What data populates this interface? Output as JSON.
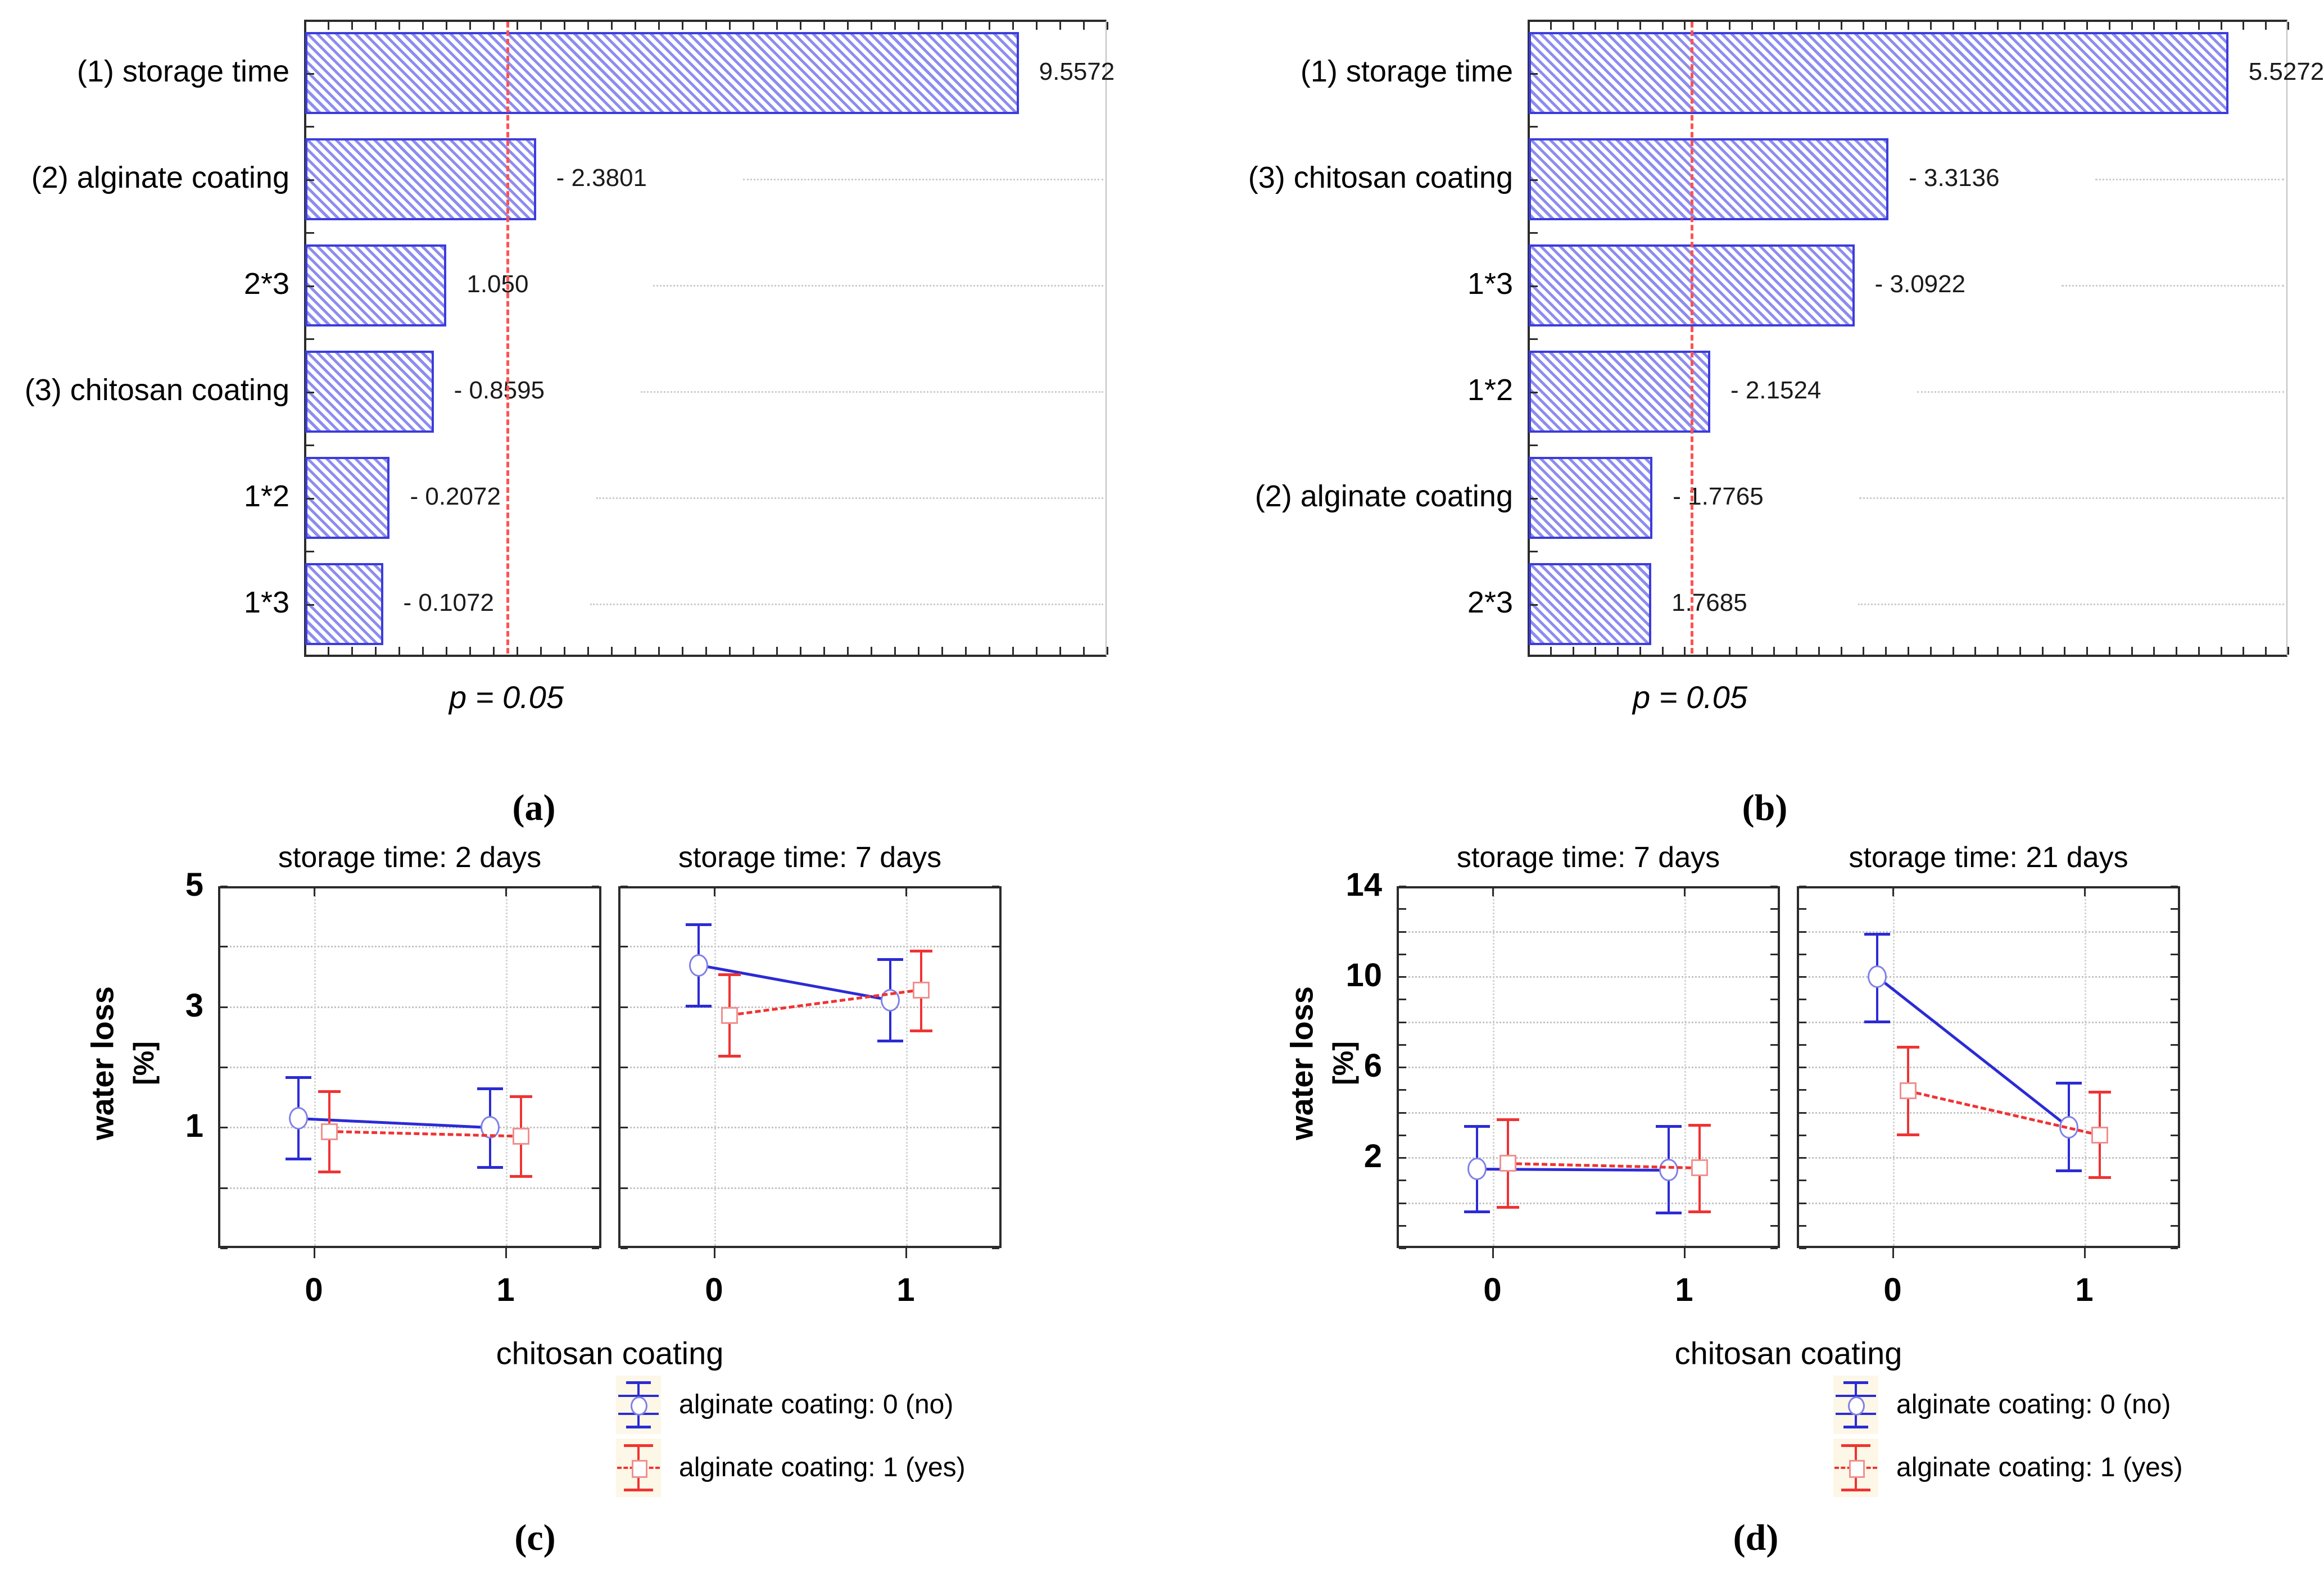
{
  "figure": {
    "panel_labels": {
      "a": "(a)",
      "b": "(b)",
      "c": "(c)",
      "d": "(d)"
    },
    "colors": {
      "bar_stripe": "#8c8cf0",
      "bar_border": "#3c3cdc",
      "bar_fill": "#ffffff",
      "ref_line": "#ff5252",
      "frame": "#2b2b2b",
      "grid_dots": "#c4c4c4",
      "series_no_alginate": "#2b2bd5",
      "series_yes_alginate": "#ef3333",
      "legend_swatch_bg": "#fcf7e6"
    }
  },
  "chart_data": [
    {
      "id": "pareto_a",
      "type": "bar",
      "orientation": "horizontal",
      "categories": [
        "(1) storage time",
        "(2) alginate coating",
        "2*3",
        "(3) chitosan coating",
        "1*2",
        "1*3"
      ],
      "values": [
        9.5572,
        -2.3801,
        1.05,
        -0.8595,
        -0.2072,
        -0.1072
      ],
      "value_labels": [
        "9.5572",
        "- 2.3801",
        "1.050",
        "- 0.8595",
        "- 0.2072",
        "- 0.1072"
      ],
      "axis": {
        "min": -1.05,
        "max": 10.88,
        "grid": "row-dotted"
      },
      "ref": {
        "value": 1.96,
        "label": "p = 0.05"
      }
    },
    {
      "id": "pareto_b",
      "type": "bar",
      "orientation": "horizontal",
      "categories": [
        "(1) storage time",
        "(3) chitosan coating",
        "1*3",
        "1*2",
        "(2) alginate coating",
        "2*3"
      ],
      "values": [
        5.5272,
        -3.3136,
        -3.0922,
        -2.1524,
        -1.7765,
        1.7685
      ],
      "value_labels": [
        "5.5272",
        "- 3.3136",
        "- 3.0922",
        "- 2.1524",
        "- 1.7765",
        "1.7685"
      ],
      "axis": {
        "min": 0.97,
        "max": 5.92,
        "grid": "row-dotted"
      },
      "ref": {
        "value": 2.03,
        "label": "p = 0.05"
      }
    },
    {
      "id": "interaction_c",
      "type": "line",
      "ylabel": "water loss",
      "ylabel_unit": "[%]",
      "xlabel": "chitosan coating",
      "ylim": [
        -1,
        5
      ],
      "ytick_labeled": [
        1,
        3,
        5
      ],
      "gridlines": [
        0,
        1,
        2,
        3,
        4
      ],
      "x_categories": [
        "0",
        "1"
      ],
      "legend": [
        "alginate coating: 0 (no)",
        "alginate coating: 1 (yes)"
      ],
      "subplots": [
        {
          "title": "storage time: 2 days",
          "series": [
            {
              "name": "alginate coating: 0 (no)",
              "color": "#2b2bd5",
              "marker_color": "#8080e8",
              "style": "solid",
              "marker": "circle",
              "points": [
                {
                  "x": 0,
                  "y": 1.15,
                  "lo": 0.47,
                  "hi": 1.83
                },
                {
                  "x": 1,
                  "y": 1.0,
                  "lo": 0.33,
                  "hi": 1.65
                }
              ]
            },
            {
              "name": "alginate coating: 1 (yes)",
              "color": "#ef3333",
              "marker_color": "#f09090",
              "style": "dashed",
              "marker": "square",
              "points": [
                {
                  "x": 0,
                  "y": 0.93,
                  "lo": 0.26,
                  "hi": 1.6
                },
                {
                  "x": 1,
                  "y": 0.85,
                  "lo": 0.18,
                  "hi": 1.52
                }
              ]
            }
          ]
        },
        {
          "title": "storage time: 7 days",
          "series": [
            {
              "name": "alginate coating: 0 (no)",
              "color": "#2b2bd5",
              "marker_color": "#8080e8",
              "style": "solid",
              "marker": "circle",
              "points": [
                {
                  "x": 0,
                  "y": 3.69,
                  "lo": 3.01,
                  "hi": 4.37
                },
                {
                  "x": 1,
                  "y": 3.11,
                  "lo": 2.43,
                  "hi": 3.79
                }
              ]
            },
            {
              "name": "alginate coating: 1 (yes)",
              "color": "#ef3333",
              "marker_color": "#f09090",
              "style": "dashed",
              "marker": "square",
              "points": [
                {
                  "x": 0,
                  "y": 2.86,
                  "lo": 2.18,
                  "hi": 3.54
                },
                {
                  "x": 1,
                  "y": 3.28,
                  "lo": 2.6,
                  "hi": 3.93
                }
              ]
            }
          ]
        }
      ]
    },
    {
      "id": "interaction_d",
      "type": "line",
      "ylabel": "water loss",
      "ylabel_unit": "[%]",
      "xlabel": "chitosan coating",
      "ylim": [
        -2,
        14
      ],
      "ytick_labeled": [
        2,
        6,
        10,
        14
      ],
      "gridlines": [
        0,
        2,
        4,
        6,
        8,
        10,
        12
      ],
      "x_categories": [
        "0",
        "1"
      ],
      "legend": [
        "alginate coating: 0 (no)",
        "alginate coating: 1 (yes)"
      ],
      "subplots": [
        {
          "title": "storage time: 7 days",
          "series": [
            {
              "name": "alginate coating: 0 (no)",
              "color": "#2b2bd5",
              "marker_color": "#8080e8",
              "style": "solid",
              "marker": "circle",
              "points": [
                {
                  "x": 0,
                  "y": 1.5,
                  "lo": -0.4,
                  "hi": 3.4
                },
                {
                  "x": 1,
                  "y": 1.45,
                  "lo": -0.45,
                  "hi": 3.4
                }
              ]
            },
            {
              "name": "alginate coating: 1 (yes)",
              "color": "#ef3333",
              "marker_color": "#f09090",
              "style": "dashed",
              "marker": "square",
              "points": [
                {
                  "x": 0,
                  "y": 1.75,
                  "lo": -0.2,
                  "hi": 3.7
                },
                {
                  "x": 1,
                  "y": 1.55,
                  "lo": -0.4,
                  "hi": 3.45
                }
              ]
            }
          ]
        },
        {
          "title": "storage time: 21 days",
          "series": [
            {
              "name": "alginate coating: 0 (no)",
              "color": "#2b2bd5",
              "marker_color": "#8080e8",
              "style": "solid",
              "marker": "circle",
              "points": [
                {
                  "x": 0,
                  "y": 10.0,
                  "lo": 8.0,
                  "hi": 11.9
                },
                {
                  "x": 1,
                  "y": 3.35,
                  "lo": 1.4,
                  "hi": 5.3
                }
              ]
            },
            {
              "name": "alginate coating: 1 (yes)",
              "color": "#ef3333",
              "marker_color": "#f09090",
              "style": "dashed",
              "marker": "square",
              "points": [
                {
                  "x": 0,
                  "y": 4.95,
                  "lo": 3.0,
                  "hi": 6.9
                },
                {
                  "x": 1,
                  "y": 3.0,
                  "lo": 1.1,
                  "hi": 4.9
                }
              ]
            }
          ]
        }
      ]
    }
  ]
}
